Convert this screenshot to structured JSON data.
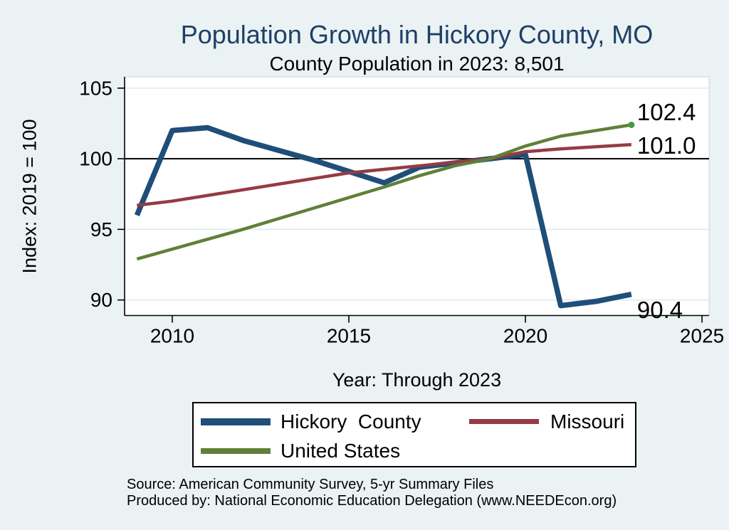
{
  "colors": {
    "background": "#eaf2f3",
    "plot_background": "#ffffff",
    "title": "#1e3f66",
    "grid": "#dfeaf2",
    "axis": "#000000",
    "plot_border": "#c9d7df",
    "end_marker": "#3f9d3f"
  },
  "source": {
    "line1": "Source: American Community Survey, 5-yr Summary Files",
    "line2": "Produced by: National Economic Education Delegation (www.NEEDEcon.org)"
  },
  "chart_data": {
    "type": "line",
    "title": "Population Growth in Hickory County, MO",
    "subtitle": "County Population in 2023: 8,501",
    "ylabel": "Index: 2019 = 100",
    "xlabel": "Year: Through 2023",
    "x": [
      2009,
      2010,
      2011,
      2012,
      2013,
      2014,
      2015,
      2016,
      2017,
      2018,
      2019,
      2020,
      2021,
      2022,
      2023
    ],
    "series": [
      {
        "name": "Hickory  County",
        "color": "#1f4e79",
        "width": 7.5,
        "end_label": "90.4",
        "label_dy": 22,
        "end_marker": false,
        "values": [
          96.0,
          102.0,
          102.2,
          101.3,
          100.6,
          99.9,
          99.1,
          98.3,
          99.4,
          99.7,
          100.0,
          100.3,
          89.6,
          89.9,
          90.4
        ]
      },
      {
        "name": "Missouri",
        "color": "#953b43",
        "width": 4.5,
        "end_label": "101.0",
        "label_dy": 1,
        "end_marker": false,
        "values": [
          96.7,
          97.0,
          97.4,
          97.8,
          98.2,
          98.6,
          99.0,
          99.25,
          99.5,
          99.75,
          100.0,
          100.5,
          100.7,
          100.85,
          101.0
        ]
      },
      {
        "name": "United States",
        "color": "#5f8038",
        "width": 4.5,
        "end_label": "102.4",
        "label_dy": -18,
        "end_marker": true,
        "values": [
          92.9,
          93.6,
          94.3,
          95.0,
          95.75,
          96.5,
          97.25,
          98.0,
          98.8,
          99.5,
          100.0,
          100.9,
          101.6,
          102.0,
          102.4
        ]
      }
    ],
    "xticks": [
      2010,
      2015,
      2020,
      2025
    ],
    "yticks": [
      90,
      95,
      100,
      105
    ],
    "xlim": [
      2008.65,
      2025.2
    ],
    "ylim": [
      88.9,
      105.8
    ],
    "ref_line_y": 100,
    "grid": true,
    "legend_position": "bottom"
  }
}
